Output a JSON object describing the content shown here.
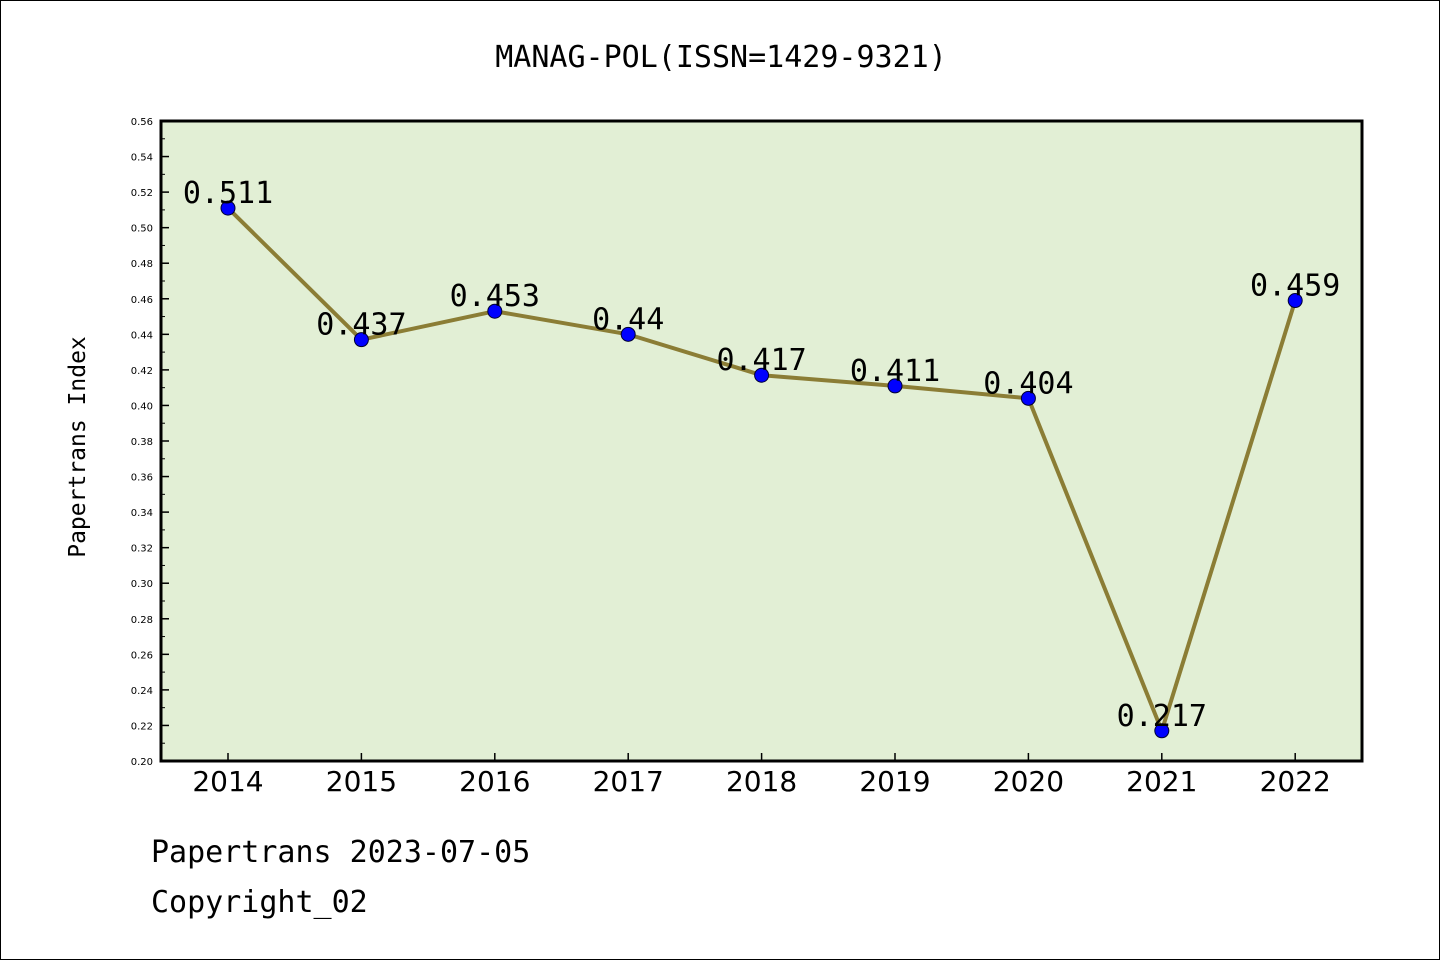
{
  "chart_data": {
    "type": "line",
    "title": "MANAG-POL(ISSN=1429-9321)",
    "xlabel": "",
    "ylabel": "Papertrans Index",
    "categories": [
      "2014",
      "2015",
      "2016",
      "2017",
      "2018",
      "2019",
      "2020",
      "2021",
      "2022"
    ],
    "series": [
      {
        "values": [
          0.511,
          0.437,
          0.453,
          0.44,
          0.417,
          0.411,
          0.404,
          0.217,
          0.459
        ],
        "labels": [
          "0.511",
          "0.437",
          "0.453",
          "0.44",
          "0.417",
          "0.411",
          "0.404",
          "0.217",
          "0.459"
        ]
      }
    ],
    "ylim": [
      0.2,
      0.56
    ],
    "yticks": [
      "0.20",
      "0.22",
      "0.24",
      "0.26",
      "0.28",
      "0.30",
      "0.32",
      "0.34",
      "0.36",
      "0.38",
      "0.40",
      "0.42",
      "0.44",
      "0.46",
      "0.48",
      "0.50",
      "0.52",
      "0.54",
      "0.56"
    ],
    "grid": false,
    "legend": "none",
    "colors": {
      "plot_background": "#e2efd5",
      "line": "#8b7d35",
      "marker": "#0000ff",
      "axis": "#000000"
    }
  },
  "footer": {
    "line1": "Papertrans 2023-07-05",
    "line2": "Copyright_02"
  }
}
